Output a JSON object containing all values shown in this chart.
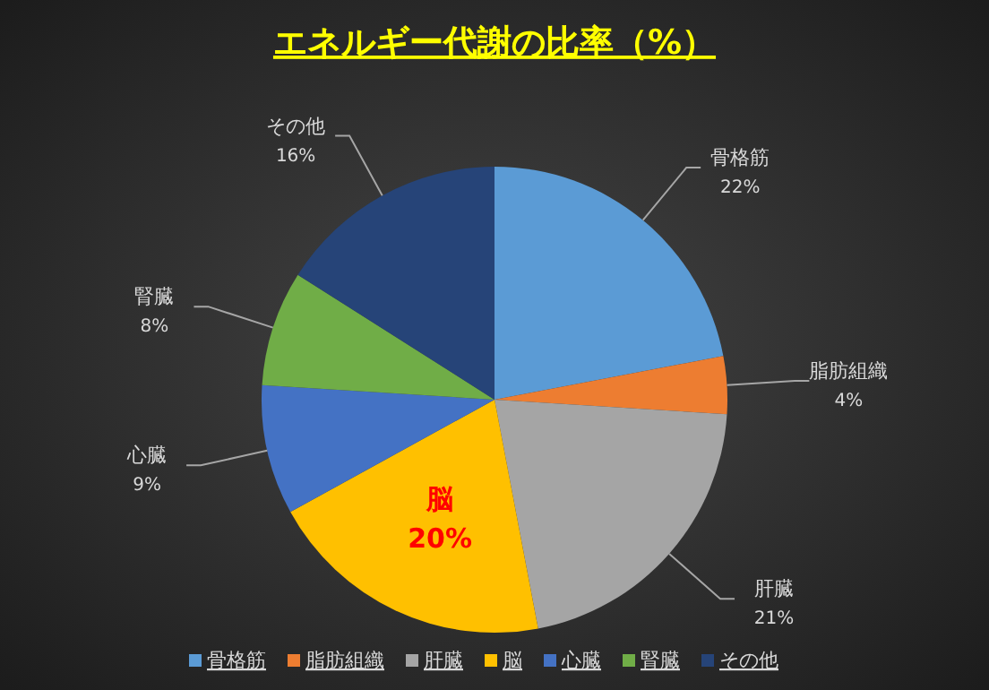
{
  "chart_data": {
    "type": "pie",
    "title": "エネルギー代謝の比率（%）",
    "categories": [
      "骨格筋",
      "脂肪組織",
      "肝臓",
      "脳",
      "心臓",
      "腎臓",
      "その他"
    ],
    "values": [
      22,
      4,
      21,
      20,
      9,
      8,
      16
    ],
    "colors": [
      "#5b9bd5",
      "#ed7d31",
      "#a5a5a5",
      "#ffc000",
      "#4472c4",
      "#70ad47",
      "#264478"
    ],
    "value_labels": [
      "22%",
      "4%",
      "21%",
      "20%",
      "9%",
      "8%",
      "16%"
    ],
    "legend": "bottom"
  }
}
